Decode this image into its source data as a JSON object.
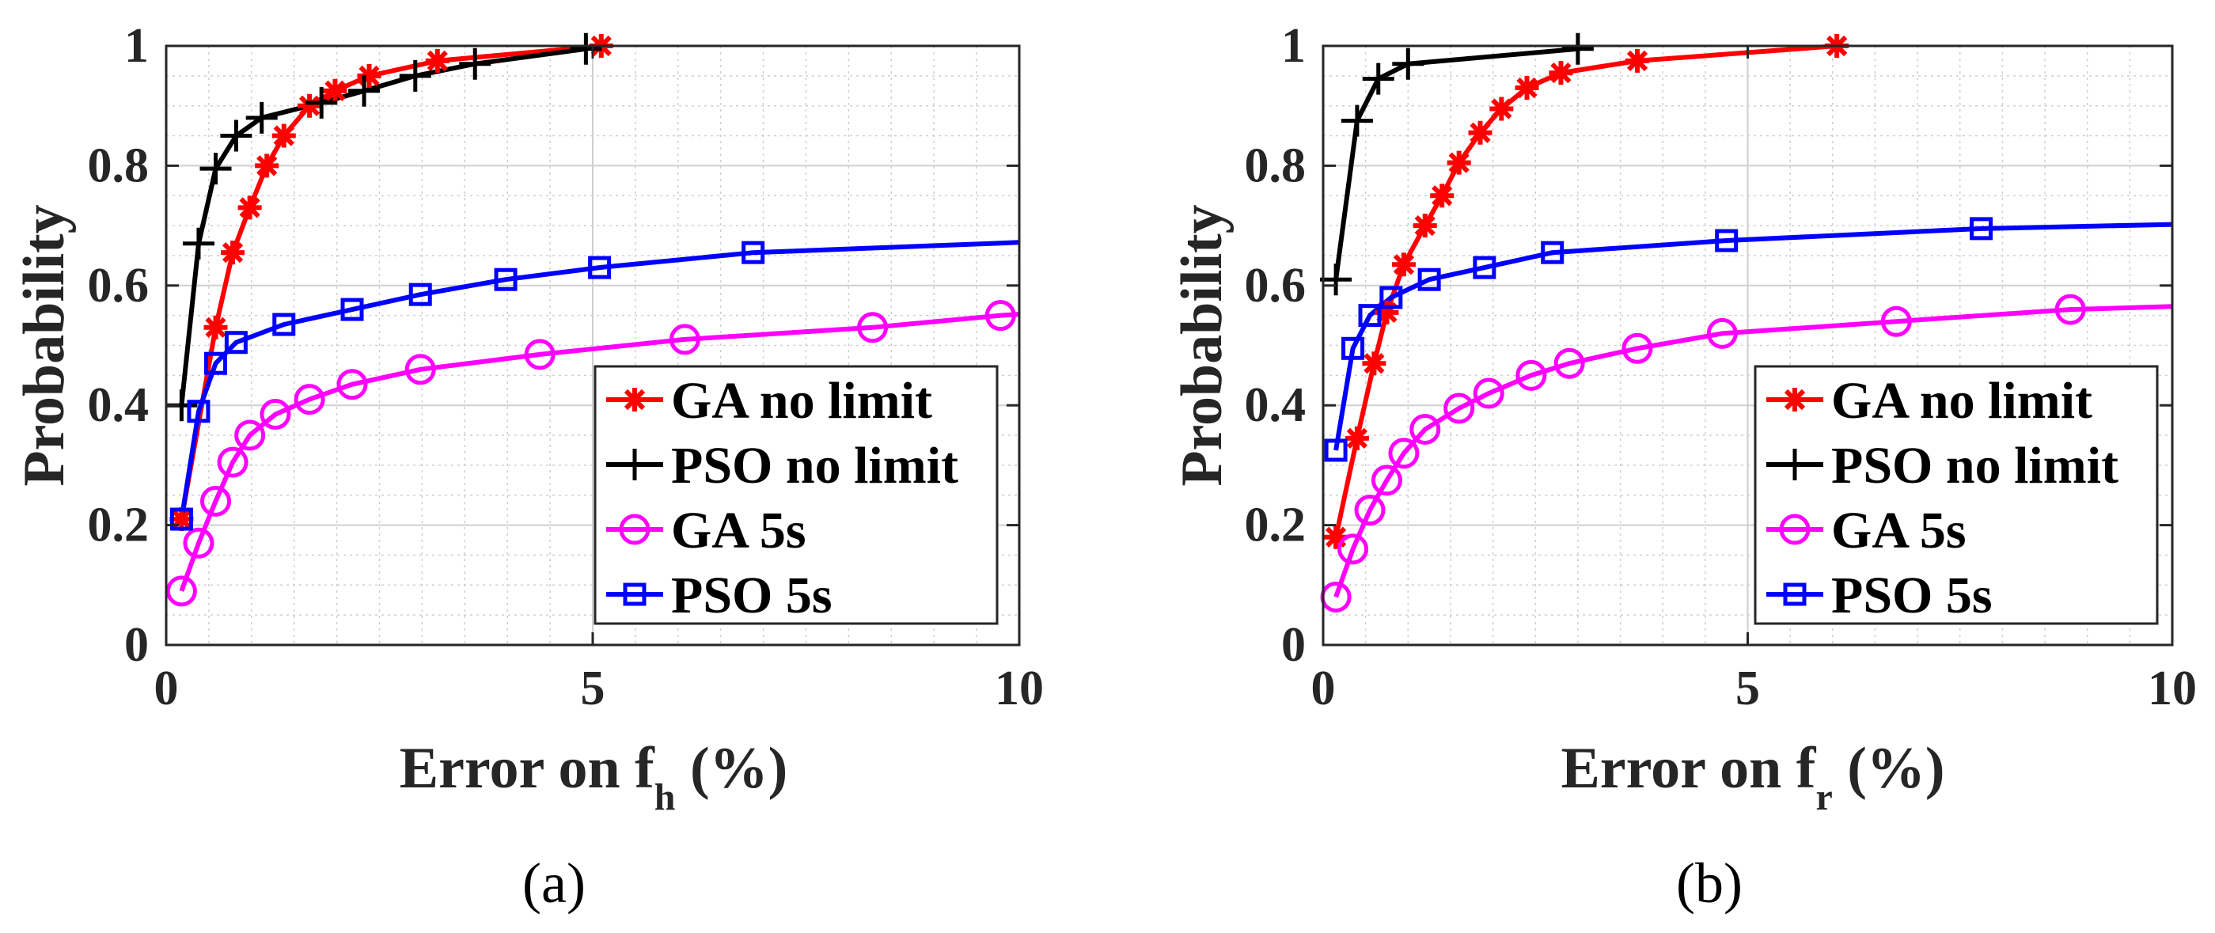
{
  "colors": {
    "ga_no_limit": "#ff0000",
    "pso_no_limit": "#000000",
    "ga_5s": "#ff00ff",
    "pso_5s": "#0000ff",
    "grid": "#cfcfcf",
    "axis": "#262626"
  },
  "chart_data": [
    {
      "type": "line",
      "caption": "(a)",
      "xlabel_main": "Error on f",
      "xlabel_sub": "h",
      "xlabel_tail": " (%)",
      "ylabel": "Probability",
      "xlim": [
        0,
        10
      ],
      "ylim": [
        0,
        1
      ],
      "xticks": [
        0,
        5,
        10
      ],
      "xtick_labels": [
        "0",
        "5",
        "10"
      ],
      "yticks": [
        0,
        0.2,
        0.4,
        0.6,
        0.8,
        1
      ],
      "ytick_labels": [
        "0",
        "0.2",
        "0.4",
        "0.6",
        "0.8",
        "1"
      ],
      "grid": true,
      "legend_position": "bottom-right",
      "series": [
        {
          "key": "ga_no_limit",
          "name": "GA no limit",
          "marker": "asterisk",
          "x": [
            0.18,
            0.58,
            0.78,
            0.98,
            1.18,
            1.38,
            1.68,
            1.98,
            2.38,
            3.18,
            5.1
          ],
          "y": [
            0.21,
            0.53,
            0.655,
            0.73,
            0.8,
            0.85,
            0.9,
            0.925,
            0.95,
            0.975,
            1.0
          ]
        },
        {
          "key": "pso_no_limit",
          "name": "PSO no limit",
          "marker": "plus",
          "x": [
            0.18,
            0.38,
            0.58,
            0.82,
            1.12,
            1.82,
            2.32,
            2.92,
            3.62,
            4.92
          ],
          "y": [
            0.4,
            0.67,
            0.795,
            0.85,
            0.88,
            0.905,
            0.925,
            0.95,
            0.97,
            0.995
          ]
        },
        {
          "key": "ga_5s",
          "name": "GA 5s",
          "marker": "circle",
          "x": [
            0.18,
            0.38,
            0.58,
            0.78,
            0.98,
            1.28,
            1.68,
            2.18,
            2.98,
            4.38,
            6.08,
            8.28,
            9.78,
            10.0
          ],
          "y": [
            0.09,
            0.17,
            0.24,
            0.305,
            0.35,
            0.385,
            0.41,
            0.435,
            0.46,
            0.485,
            0.51,
            0.53,
            0.55,
            0.552
          ]
        },
        {
          "key": "pso_5s",
          "name": "PSO 5s",
          "marker": "square",
          "x": [
            0.18,
            0.38,
            0.58,
            0.82,
            1.38,
            2.18,
            2.98,
            3.98,
            5.08,
            6.88,
            10.0
          ],
          "y": [
            0.21,
            0.39,
            0.47,
            0.505,
            0.535,
            0.56,
            0.585,
            0.61,
            0.63,
            0.655,
            0.672
          ]
        }
      ]
    },
    {
      "type": "line",
      "caption": "(b)",
      "xlabel_main": "Error on f",
      "xlabel_sub": "r",
      "xlabel_tail": " (%)",
      "ylabel": "Probability",
      "xlim": [
        0,
        10
      ],
      "ylim": [
        0,
        1
      ],
      "xticks": [
        0,
        5,
        10
      ],
      "xtick_labels": [
        "0",
        "5",
        "10"
      ],
      "yticks": [
        0,
        0.2,
        0.4,
        0.6,
        0.8,
        1
      ],
      "ytick_labels": [
        "0",
        "0.2",
        "0.4",
        "0.6",
        "0.8",
        "1"
      ],
      "grid": true,
      "legend_position": "bottom-right",
      "series": [
        {
          "key": "ga_no_limit",
          "name": "GA no limit",
          "marker": "asterisk",
          "x": [
            0.15,
            0.4,
            0.6,
            0.75,
            0.95,
            1.2,
            1.4,
            1.6,
            1.85,
            2.1,
            2.4,
            2.8,
            3.7,
            6.05
          ],
          "y": [
            0.18,
            0.345,
            0.47,
            0.555,
            0.635,
            0.7,
            0.75,
            0.805,
            0.855,
            0.895,
            0.93,
            0.955,
            0.975,
            1.0
          ]
        },
        {
          "key": "pso_no_limit",
          "name": "PSO no limit",
          "marker": "plus",
          "x": [
            0.15,
            0.4,
            0.65,
            1.0,
            3.0
          ],
          "y": [
            0.61,
            0.875,
            0.945,
            0.97,
            0.995
          ]
        },
        {
          "key": "ga_5s",
          "name": "GA 5s",
          "marker": "circle",
          "x": [
            0.15,
            0.35,
            0.55,
            0.75,
            0.95,
            1.2,
            1.6,
            1.95,
            2.45,
            2.9,
            3.7,
            4.7,
            6.75,
            8.8,
            10.0
          ],
          "y": [
            0.08,
            0.16,
            0.225,
            0.275,
            0.32,
            0.36,
            0.395,
            0.42,
            0.45,
            0.47,
            0.495,
            0.52,
            0.54,
            0.56,
            0.565
          ]
        },
        {
          "key": "pso_5s",
          "name": "PSO 5s",
          "marker": "square",
          "x": [
            0.15,
            0.35,
            0.55,
            0.8,
            1.25,
            1.9,
            2.7,
            4.75,
            7.75,
            10.0
          ],
          "y": [
            0.325,
            0.495,
            0.55,
            0.58,
            0.61,
            0.63,
            0.655,
            0.675,
            0.695,
            0.702
          ]
        }
      ]
    }
  ]
}
